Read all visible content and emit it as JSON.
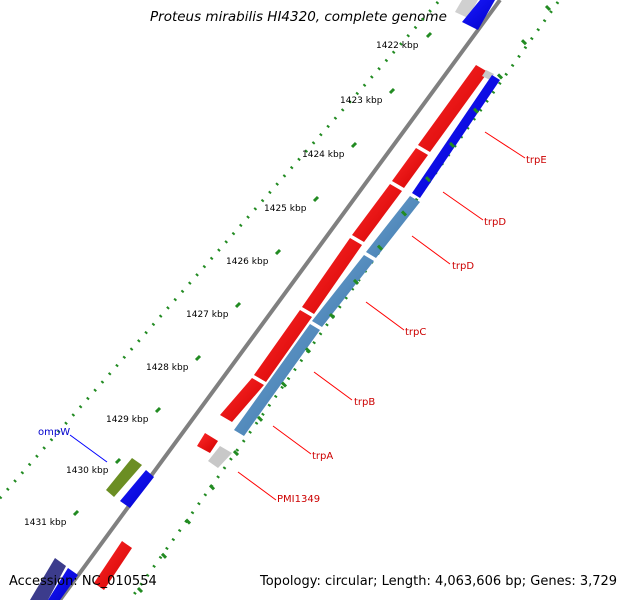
{
  "title": "Proteus mirabilis HI4320, complete genome",
  "footer": {
    "accession": "Accession: NC_010554",
    "summary": "Topology: circular; Length: 4,063,606 bp; Genes: 3,729"
  },
  "scale": {
    "unit": "kbp",
    "ticks": [
      "1422 kbp",
      "1423 kbp",
      "1424 kbp",
      "1425 kbp",
      "1426 kbp",
      "1427 kbp",
      "1428 kbp",
      "1429 kbp",
      "1430 kbp",
      "1431 kbp"
    ]
  },
  "genes": [
    "trpE",
    "trpD",
    "trpD",
    "trpC",
    "trpB",
    "trpA",
    "PMI1349",
    "ompW"
  ],
  "colors": {
    "forward_cds": "#ff0000",
    "reverse_cds": "#0000ff",
    "feature_steelblue": "#4682b4",
    "feature_green": "#6b8e23",
    "feature_gray": "#c8c8c8",
    "feature_navy": "#3c3c8c",
    "backbone": "#808080",
    "tick": "#228b22",
    "gene_label": "#cc0000",
    "ompw_label": "#0000cc"
  }
}
